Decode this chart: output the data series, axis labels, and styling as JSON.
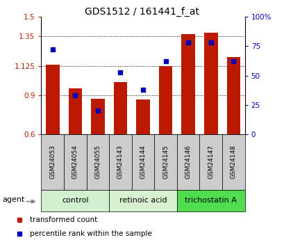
{
  "title": "GDS1512 / 161441_f_at",
  "samples": [
    "GSM24053",
    "GSM24054",
    "GSM24055",
    "GSM24143",
    "GSM24144",
    "GSM24145",
    "GSM24146",
    "GSM24147",
    "GSM24148"
  ],
  "red_values": [
    1.135,
    0.95,
    0.875,
    1.0,
    0.865,
    1.125,
    1.37,
    1.38,
    1.19
  ],
  "blue_values": [
    72,
    33,
    20,
    53,
    38,
    62,
    78,
    78,
    62
  ],
  "ylim_left": [
    0.6,
    1.5
  ],
  "ylim_right": [
    0,
    100
  ],
  "yticks_left": [
    0.6,
    0.9,
    1.125,
    1.35,
    1.5
  ],
  "ytick_labels_left": [
    "0.6",
    "0.9",
    "1.125",
    "1.35",
    "1.5"
  ],
  "yticks_right": [
    0,
    25,
    50,
    75,
    100
  ],
  "ytick_labels_right": [
    "0",
    "25",
    "50",
    "75",
    "100%"
  ],
  "grid_yticks": [
    0.9,
    1.125,
    1.35
  ],
  "groups": [
    {
      "label": "control",
      "indices": [
        0,
        1,
        2
      ],
      "color": "#d0f0d0"
    },
    {
      "label": "retinoic acid",
      "indices": [
        3,
        4,
        5
      ],
      "color": "#d8f0d0"
    },
    {
      "label": "trichostatin A",
      "indices": [
        6,
        7,
        8
      ],
      "color": "#50dd50"
    }
  ],
  "bar_color": "#bb1a00",
  "square_color": "#0000bb",
  "bar_width": 0.6,
  "background_plot": "#ffffff",
  "cell_color": "#cccccc",
  "agent_label": "agent",
  "legend_red": "transformed count",
  "legend_blue": "percentile rank within the sample",
  "title_fontsize": 10,
  "tick_fontsize": 7.5,
  "sample_fontsize": 6.5,
  "group_fontsize": 8,
  "legend_fontsize": 7.5
}
